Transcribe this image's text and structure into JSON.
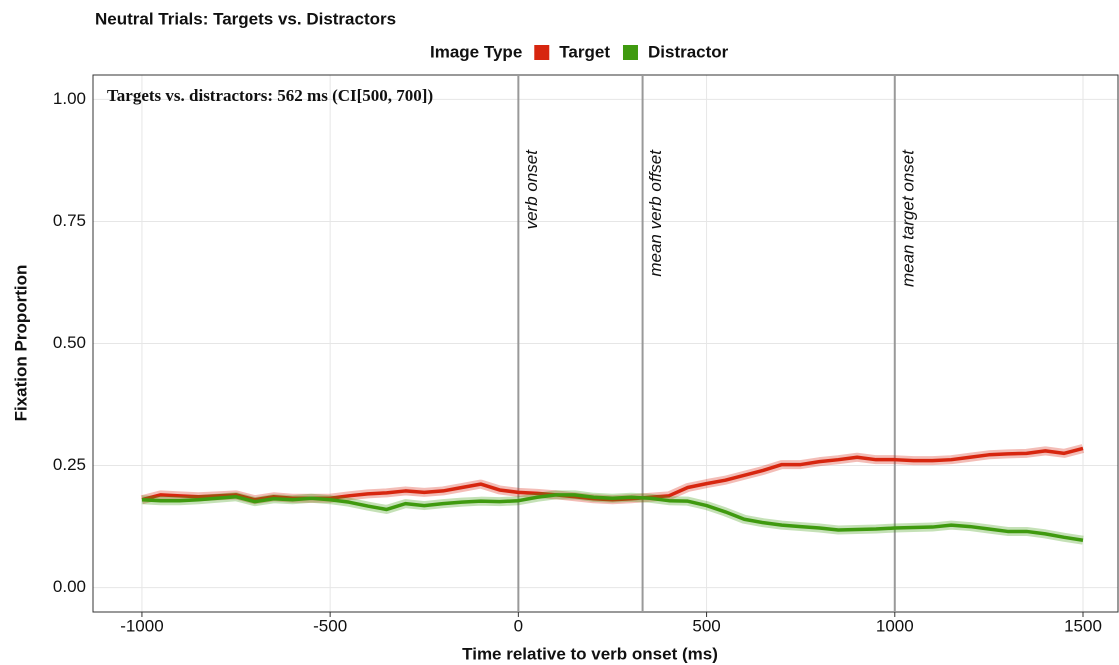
{
  "chart_data": {
    "type": "line",
    "title": "Neutral Trials: Targets vs. Distractors",
    "legend_title": "Image Type",
    "x_label": "Time relative to verb onset (ms)",
    "y_label": "Fixation Proportion",
    "annotation": "Targets vs. distractors: 562 ms (CI[500, 700])",
    "xlim": [
      -1130,
      1593
    ],
    "ylim": [
      -0.05,
      1.05
    ],
    "xticks": [
      -1000,
      -500,
      0,
      500,
      1000,
      1500
    ],
    "yticks": [
      {
        "value": 0,
        "label": "0.00"
      },
      {
        "value": 0.25,
        "label": "0.25"
      },
      {
        "value": 0.5,
        "label": "0.50"
      },
      {
        "value": 0.75,
        "label": "0.75"
      },
      {
        "value": 1,
        "label": "1.00"
      }
    ],
    "grid": true,
    "vlines": [
      {
        "x": 0,
        "label": "verb onset"
      },
      {
        "x": 330,
        "label": "mean verb offset"
      },
      {
        "x": 1000,
        "label": "mean target onset"
      }
    ],
    "x": [
      -1000,
      -950,
      -900,
      -850,
      -800,
      -750,
      -700,
      -650,
      -600,
      -550,
      -500,
      -450,
      -400,
      -350,
      -300,
      -250,
      -200,
      -150,
      -100,
      -50,
      0,
      50,
      100,
      150,
      200,
      250,
      300,
      350,
      400,
      450,
      500,
      550,
      600,
      650,
      700,
      750,
      800,
      850,
      900,
      950,
      1000,
      1050,
      1100,
      1150,
      1200,
      1250,
      1300,
      1350,
      1400,
      1450,
      1500
    ],
    "series": [
      {
        "name": "Target",
        "color": "#d7260f",
        "values": [
          0.18,
          0.19,
          0.188,
          0.186,
          0.188,
          0.19,
          0.18,
          0.186,
          0.183,
          0.183,
          0.183,
          0.188,
          0.192,
          0.194,
          0.198,
          0.195,
          0.198,
          0.205,
          0.212,
          0.2,
          0.195,
          0.193,
          0.19,
          0.186,
          0.182,
          0.18,
          0.182,
          0.185,
          0.188,
          0.205,
          0.213,
          0.22,
          0.23,
          0.24,
          0.252,
          0.252,
          0.258,
          0.262,
          0.267,
          0.262,
          0.262,
          0.26,
          0.26,
          0.262,
          0.267,
          0.272,
          0.274,
          0.275,
          0.28,
          0.275,
          0.285
        ]
      },
      {
        "name": "Distractor",
        "color": "#3f9a0f",
        "values": [
          0.18,
          0.178,
          0.178,
          0.18,
          0.183,
          0.186,
          0.176,
          0.182,
          0.18,
          0.183,
          0.18,
          0.175,
          0.167,
          0.16,
          0.172,
          0.168,
          0.172,
          0.175,
          0.177,
          0.176,
          0.178,
          0.185,
          0.19,
          0.19,
          0.185,
          0.183,
          0.185,
          0.183,
          0.178,
          0.177,
          0.168,
          0.155,
          0.14,
          0.133,
          0.128,
          0.125,
          0.122,
          0.118,
          0.119,
          0.12,
          0.122,
          0.123,
          0.124,
          0.128,
          0.125,
          0.12,
          0.115,
          0.115,
          0.11,
          0.103,
          0.097
        ]
      }
    ]
  }
}
